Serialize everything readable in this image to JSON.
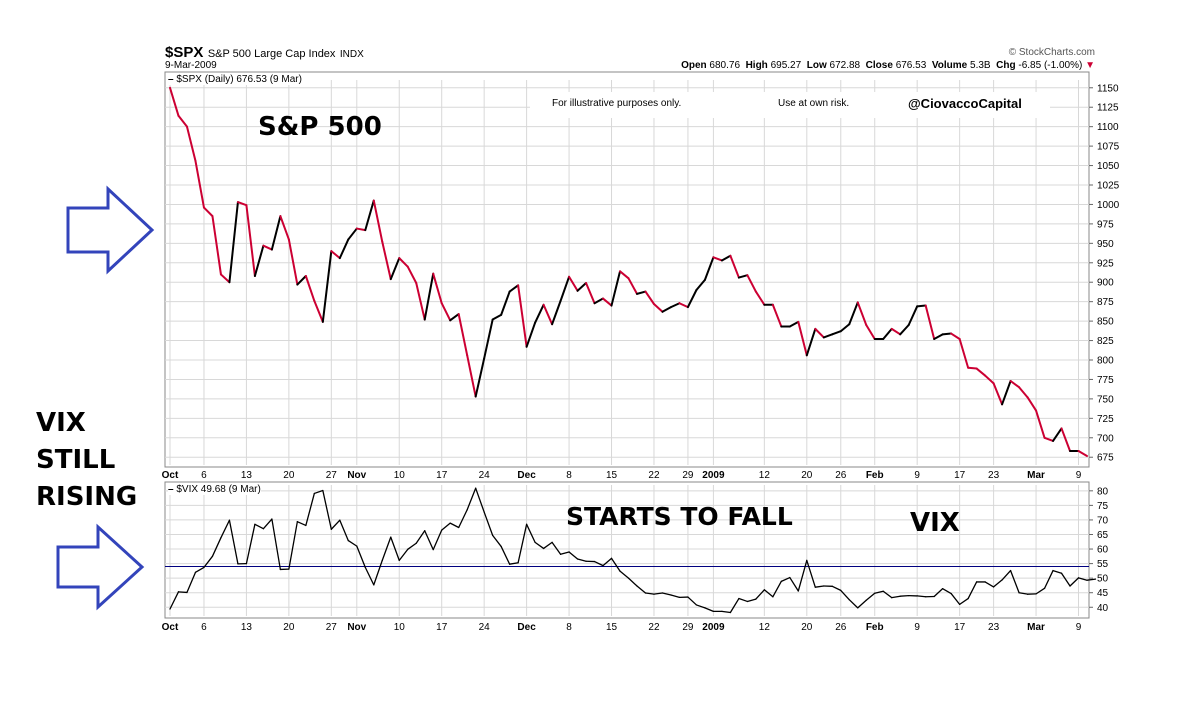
{
  "header": {
    "symbol": "$SPX",
    "name": "S&P 500 Large Cap Index",
    "exchange": "INDX",
    "date": "9-Mar-2009",
    "source": "© StockCharts.com",
    "quote": {
      "open_label": "Open",
      "open": "680.76",
      "high_label": "High",
      "high": "695.27",
      "low_label": "Low",
      "low": "672.88",
      "close_label": "Close",
      "close": "676.53",
      "volume_label": "Volume",
      "volume": "5.3B",
      "chg_label": "Chg",
      "chg": "-6.85 (-1.00%)"
    }
  },
  "annotations": {
    "illustrative": "For illustrative purposes only.",
    "risk": "Use at own risk.",
    "handle": "@CiovaccoCapital",
    "sp500": "S&P 500",
    "vix_rising": [
      "VIX",
      "STILL",
      "RISING"
    ],
    "starts_to_fall": "STARTS TO FALL",
    "vix": "VIX"
  },
  "colors": {
    "up": "#000000",
    "down": "#cc0033",
    "vix_line": "#000000",
    "reference_line": "#000080",
    "arrow": "#3344bb",
    "grid": "#d8d8d8"
  },
  "chart_data": [
    {
      "type": "line",
      "legend": "$SPX (Daily) 676.53 (9 Mar)",
      "ylim": [
        665,
        1160
      ],
      "yticks": [
        675,
        700,
        725,
        750,
        775,
        800,
        825,
        850,
        875,
        900,
        925,
        950,
        975,
        1000,
        1025,
        1050,
        1075,
        1100,
        1125,
        1150
      ],
      "xtick_labels": [
        "Oct",
        "6",
        "13",
        "20",
        "27",
        "Nov",
        "10",
        "17",
        "24",
        "Dec",
        "8",
        "15",
        "22",
        "29",
        "2009",
        "12",
        "20",
        "26",
        "Feb",
        "9",
        "17",
        "23",
        "Mar",
        "9"
      ],
      "up_color_black_down_color_red": true,
      "values": [
        1150,
        1114,
        1100,
        1056,
        996,
        985,
        910,
        900,
        1003,
        999,
        908,
        947,
        942,
        985,
        955,
        897,
        908,
        876,
        849,
        940,
        931,
        955,
        969,
        967,
        1005,
        952,
        904,
        931,
        920,
        899,
        852,
        911,
        873,
        851,
        859,
        806,
        753,
        802,
        852,
        858,
        888,
        896,
        817,
        848,
        871,
        846,
        876,
        907,
        889,
        899,
        873,
        879,
        870,
        914,
        905,
        885,
        888,
        872,
        862,
        868,
        873,
        868,
        890,
        903,
        932,
        928,
        934,
        906,
        909,
        888,
        871,
        871,
        843,
        843,
        849,
        806,
        840,
        829,
        833,
        837,
        846,
        874,
        845,
        827,
        827,
        840,
        833,
        845,
        869,
        870,
        827,
        833,
        834,
        827,
        790,
        789,
        780,
        770,
        743,
        773,
        765,
        752,
        735,
        700,
        696,
        712,
        683,
        683,
        676.53
      ]
    },
    {
      "type": "line",
      "legend": "$VIX 49.68 (9 Mar)",
      "ylim": [
        37,
        82
      ],
      "yticks": [
        40,
        45,
        50,
        55,
        60,
        65,
        70,
        75,
        80
      ],
      "reference_line": 54,
      "xtick_labels": [
        "Oct",
        "6",
        "13",
        "20",
        "27",
        "Nov",
        "10",
        "17",
        "24",
        "Dec",
        "8",
        "15",
        "22",
        "29",
        "2009",
        "12",
        "20",
        "26",
        "Feb",
        "9",
        "17",
        "23",
        "Mar",
        "9"
      ],
      "values": [
        39.4,
        45.3,
        45.1,
        52,
        53.7,
        57.5,
        63.9,
        69.9,
        54.9,
        55,
        68.5,
        67,
        70.3,
        53,
        53.1,
        69.4,
        68.1,
        79.1,
        80.1,
        66.8,
        69.9,
        62.9,
        61,
        53.7,
        47.7,
        56.1,
        64.1,
        56.1,
        59.9,
        62,
        66.3,
        59.8,
        66.5,
        68.9,
        67.4,
        73.5,
        80.9,
        72.7,
        64.7,
        60.9,
        54.8,
        55.3,
        68.5,
        62.3,
        60.2,
        62.3,
        58.2,
        59,
        56.6,
        55.8,
        55.7,
        54.3,
        56.8,
        52.4,
        50,
        47.3,
        44.9,
        44.5,
        44.9,
        44.2,
        43.4,
        43.5,
        40.8,
        39.8,
        38.6,
        38.6,
        38.2,
        43,
        42,
        42.8,
        46,
        43.6,
        48.9,
        50.2,
        45.6,
        56.1,
        46.9,
        47.3,
        47.2,
        45.8,
        42.6,
        39.8,
        42.4,
        44.8,
        45.5,
        43.3,
        43.8,
        44,
        43.9,
        43.6,
        43.7,
        46.4,
        44.7,
        41,
        43,
        48.7,
        48.7,
        47,
        49.4,
        52.6,
        45,
        44.5,
        44.6,
        46.5,
        52.6,
        51.7,
        47.3,
        50.1,
        49.3,
        49.68
      ]
    }
  ]
}
